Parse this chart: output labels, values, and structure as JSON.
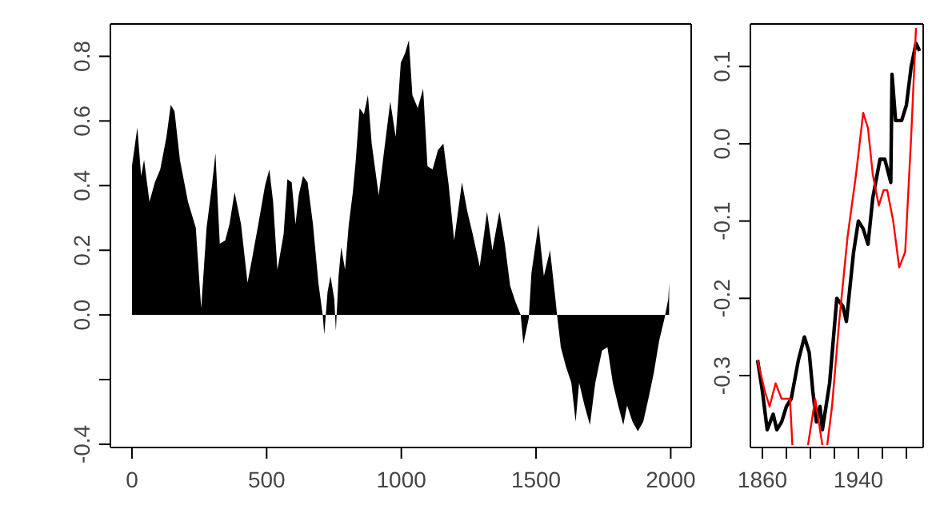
{
  "chart_data": [
    {
      "type": "area",
      "color": "#000000",
      "x": [
        0,
        20,
        34,
        45,
        65,
        85,
        105,
        128,
        144,
        158,
        178,
        208,
        237,
        257,
        277,
        297,
        310,
        326,
        346,
        362,
        381,
        405,
        429,
        445,
        469,
        494,
        510,
        524,
        540,
        563,
        577,
        593,
        607,
        619,
        635,
        652,
        672,
        692,
        708,
        714,
        726,
        737,
        751,
        757,
        767,
        777,
        791,
        805,
        820,
        831,
        845,
        861,
        876,
        890,
        916,
        935,
        959,
        979,
        998,
        1014,
        1028,
        1041,
        1061,
        1081,
        1097,
        1116,
        1136,
        1156,
        1176,
        1196,
        1225,
        1245,
        1265,
        1291,
        1318,
        1338,
        1364,
        1384,
        1404,
        1424,
        1443,
        1453,
        1473,
        1483,
        1509,
        1529,
        1552,
        1572,
        1578,
        1592,
        1611,
        1631,
        1647,
        1660,
        1680,
        1700,
        1720,
        1745,
        1765,
        1785,
        1805,
        1824,
        1838,
        1858,
        1878,
        1898,
        1917,
        1937,
        1957,
        1977,
        1991,
        1994
      ],
      "values": [
        0.46,
        0.58,
        0.43,
        0.48,
        0.35,
        0.41,
        0.45,
        0.55,
        0.65,
        0.63,
        0.48,
        0.35,
        0.27,
        0.02,
        0.27,
        0.4,
        0.5,
        0.22,
        0.23,
        0.28,
        0.38,
        0.28,
        0.1,
        0.17,
        0.28,
        0.4,
        0.45,
        0.35,
        0.14,
        0.25,
        0.42,
        0.41,
        0.28,
        0.37,
        0.43,
        0.41,
        0.28,
        0.1,
        0,
        -0.06,
        0.07,
        0.12,
        0.05,
        -0.05,
        0.12,
        0.21,
        0.14,
        0.28,
        0.38,
        0.48,
        0.64,
        0.62,
        0.68,
        0.53,
        0.37,
        0.5,
        0.66,
        0.55,
        0.78,
        0.81,
        0.85,
        0.68,
        0.64,
        0.7,
        0.46,
        0.45,
        0.51,
        0.53,
        0.4,
        0.23,
        0.41,
        0.32,
        0.25,
        0.15,
        0.32,
        0.2,
        0.32,
        0.22,
        0.09,
        0.04,
        0,
        -0.09,
        -0.01,
        0.13,
        0.28,
        0.12,
        0.2,
        0.05,
        0,
        -0.1,
        -0.16,
        -0.21,
        -0.33,
        -0.21,
        -0.28,
        -0.34,
        -0.21,
        -0.11,
        -0.1,
        -0.21,
        -0.28,
        -0.34,
        -0.28,
        -0.33,
        -0.36,
        -0.33,
        -0.26,
        -0.18,
        -0.08,
        -0.01,
        0.05,
        0.1
      ],
      "xlim": [
        -80,
        2076
      ],
      "xticks": [
        0,
        500,
        1000,
        1500,
        2000
      ],
      "ylim": [
        -0.41,
        0.9
      ],
      "yticks": [
        {
          "value": -0.4,
          "label": "-0.4"
        },
        {
          "value": -0.2,
          "label": null
        },
        {
          "value": 0,
          "label": "0.0"
        },
        0.2,
        0.4,
        0.6,
        0.8
      ]
    },
    {
      "type": "line",
      "series": [
        {
          "color": "#000000",
          "x": [
            1856,
            1860,
            1864,
            1869,
            1872,
            1876,
            1880,
            1884,
            1890,
            1895,
            1899,
            1902,
            1905,
            1908,
            1910,
            1916,
            1922,
            1927,
            1930,
            1936,
            1940,
            1944,
            1948,
            1952,
            1958,
            1962,
            1967,
            1968,
            1971,
            1976,
            1980,
            1984,
            1988,
            1991
          ],
          "values": [
            -0.28,
            -0.32,
            -0.37,
            -0.35,
            -0.37,
            -0.36,
            -0.34,
            -0.33,
            -0.28,
            -0.25,
            -0.27,
            -0.32,
            -0.36,
            -0.34,
            -0.37,
            -0.31,
            -0.2,
            -0.21,
            -0.23,
            -0.14,
            -0.1,
            -0.11,
            -0.13,
            -0.07,
            -0.02,
            -0.02,
            -0.05,
            0.09,
            0.03,
            0.03,
            0.05,
            0.1,
            0.13,
            0.12
          ]
        },
        {
          "color": "#ff0000",
          "x": [
            1856,
            1862,
            1866,
            1871,
            1876,
            1880,
            1883,
            1885,
            1890,
            1898,
            1904,
            1907,
            1910,
            1912,
            1914,
            1918,
            1924,
            1931,
            1938,
            1944,
            1948,
            1952,
            1957,
            1961,
            1964,
            1969,
            1974,
            1979,
            1984,
            1988
          ],
          "values": [
            -0.28,
            -0.32,
            -0.34,
            -0.31,
            -0.33,
            -0.33,
            -0.33,
            -0.39,
            null,
            -0.39,
            -0.33,
            -0.36,
            -0.39,
            null,
            -0.39,
            -0.34,
            -0.23,
            -0.12,
            -0.04,
            0.04,
            0.02,
            -0.04,
            -0.08,
            -0.06,
            -0.06,
            -0.1,
            -0.16,
            -0.14,
            0.01,
            0.15
          ]
        }
      ],
      "xlim": [
        1850,
        1994
      ],
      "xticks": [
        1860,
        {
          "value": 1880,
          "label": null
        },
        {
          "value": 1900,
          "label": null
        },
        {
          "value": 1920,
          "label": null
        },
        1940,
        {
          "value": 1960,
          "label": null
        },
        {
          "value": 1980,
          "label": null
        }
      ],
      "ylim": [
        -0.393,
        0.155
      ],
      "yticks": [
        -0.3,
        -0.2,
        -0.1,
        {
          "value": 0,
          "label": "0.0"
        },
        0.1
      ]
    }
  ]
}
